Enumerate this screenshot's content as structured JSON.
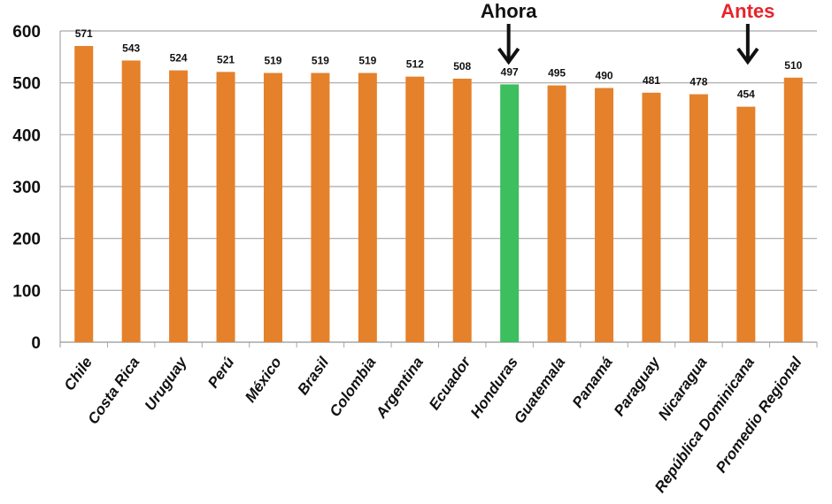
{
  "chart_data": {
    "type": "bar",
    "title": "",
    "xlabel": "",
    "ylabel": "",
    "ylim": [
      0,
      600
    ],
    "yticks": [
      0,
      100,
      200,
      300,
      400,
      500,
      600
    ],
    "grid": true,
    "categories": [
      "Chile",
      "Costa Rica",
      "Uruguay",
      "Perú",
      "México",
      "Brasil",
      "Colombia",
      "Argentina",
      "Ecuador",
      "Honduras",
      "Guatemala",
      "Panamá",
      "Paraguay",
      "Nicaragua",
      "República Dominicana",
      "Promedio Regional"
    ],
    "values": [
      571,
      543,
      524,
      521,
      519,
      519,
      519,
      512,
      508,
      497,
      495,
      490,
      481,
      478,
      454,
      510
    ],
    "highlight_index": 9,
    "colors": {
      "bar": "#E5812B",
      "highlight": "#3DBE5F",
      "grid": "#A6A6A6",
      "ahora": "#111111",
      "antes": "#E8232A"
    },
    "annotations": [
      {
        "text": "Ahora",
        "category": "Honduras",
        "color": "#111111"
      },
      {
        "text": "Antes",
        "category": "República Dominicana",
        "color": "#E8232A"
      }
    ]
  }
}
